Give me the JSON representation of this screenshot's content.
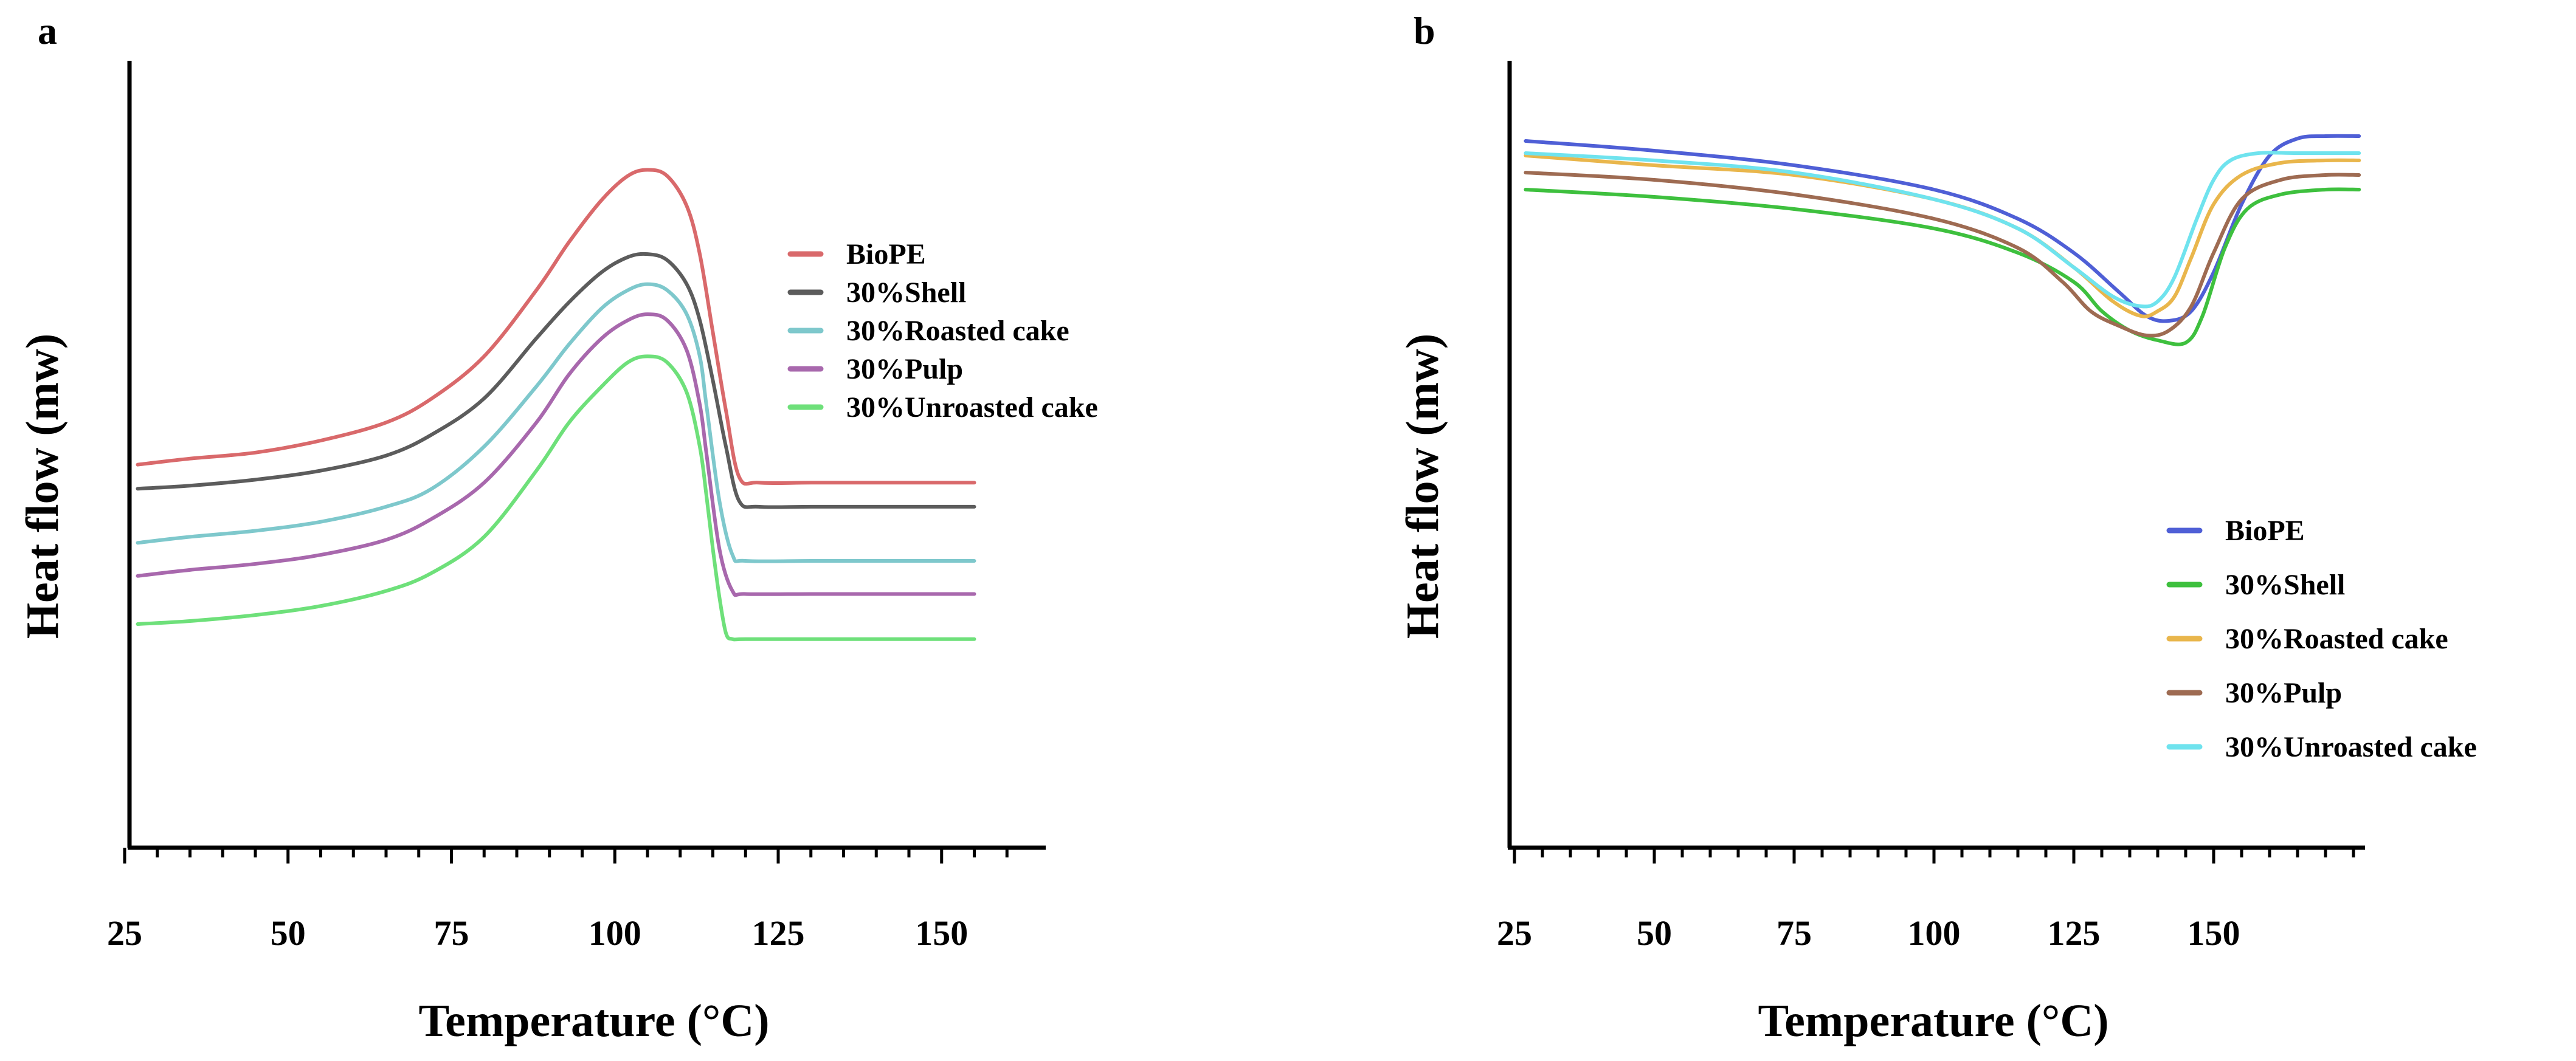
{
  "chart_data": [
    {
      "panel": "a",
      "type": "line",
      "title": "",
      "xlabel": "Temperature (°C)",
      "ylabel": "Heat flow (mw)",
      "xlim": [
        25,
        160
      ],
      "ylim": [
        0,
        100
      ],
      "x_ticks": [
        25,
        50,
        75,
        100,
        125,
        150
      ],
      "grid": false,
      "legend_position": "right",
      "series": [
        {
          "name": "BioPE",
          "color": "#d9696b",
          "x": [
            27,
            35,
            45,
            55,
            65,
            72,
            80,
            88,
            93,
            98,
            102,
            105,
            108,
            111,
            113,
            115,
            117,
            119,
            122,
            130,
            140,
            155
          ],
          "y": [
            46,
            47,
            48,
            50,
            53,
            57,
            64,
            75,
            83,
            90,
            94,
            95,
            94,
            89,
            81,
            68,
            55,
            44,
            43,
            43,
            43,
            43
          ]
        },
        {
          "name": "30%Shell",
          "color": "#5c5c5c",
          "x": [
            27,
            35,
            45,
            55,
            65,
            72,
            80,
            88,
            93,
            98,
            102,
            105,
            108,
            111,
            113,
            115,
            117,
            119,
            122,
            130,
            140,
            155
          ],
          "y": [
            42,
            42.5,
            43.5,
            45,
            47.5,
            51,
            57,
            67,
            73,
            78,
            80.5,
            81,
            80,
            76,
            70,
            60,
            49,
            40,
            39,
            39,
            39,
            39
          ]
        },
        {
          "name": "30%Roasted cake",
          "color": "#7ec8cc",
          "x": [
            27,
            35,
            45,
            55,
            65,
            72,
            80,
            88,
            93,
            98,
            102,
            105,
            108,
            111,
            113,
            114,
            116,
            118,
            120,
            130,
            140,
            155
          ],
          "y": [
            33,
            34,
            35,
            36.5,
            39,
            42,
            49,
            59,
            66,
            72,
            75,
            76,
            75,
            71,
            64,
            56,
            40,
            31,
            30,
            30,
            30,
            30
          ]
        },
        {
          "name": "30%Pulp",
          "color": "#a868ad",
          "x": [
            27,
            35,
            45,
            55,
            65,
            72,
            80,
            88,
            93,
            98,
            102,
            105,
            108,
            111,
            113,
            114,
            116,
            118,
            120,
            130,
            140,
            155
          ],
          "y": [
            27.5,
            28.5,
            29.5,
            31,
            33.5,
            37,
            43,
            53,
            61,
            67,
            70,
            71,
            70,
            65,
            56,
            48,
            32,
            25,
            24.5,
            24.5,
            24.5,
            24.5
          ]
        },
        {
          "name": "30%Unroasted cake",
          "color": "#6ee07a",
          "x": [
            27,
            35,
            45,
            55,
            65,
            72,
            80,
            88,
            93,
            98,
            102,
            105,
            108,
            111,
            113,
            114,
            115,
            116,
            117,
            118,
            120,
            130,
            140,
            155
          ],
          "y": [
            19.5,
            20,
            21,
            22.5,
            25,
            28,
            34,
            45,
            53,
            59,
            63,
            64,
            63,
            58,
            49,
            41,
            32,
            24,
            18,
            17,
            17,
            17,
            17,
            17
          ]
        }
      ]
    },
    {
      "panel": "b",
      "type": "line",
      "title": "",
      "xlabel": "Temperature (°C)",
      "ylabel": "Heat flow (mw)",
      "xlim": [
        25,
        180
      ],
      "ylim": [
        0,
        100
      ],
      "x_ticks": [
        25,
        50,
        75,
        100,
        125,
        150
      ],
      "grid": false,
      "legend_position": "bottom-right",
      "series": [
        {
          "name": "BioPE",
          "color": "#4f5fd6",
          "x": [
            27,
            50,
            75,
            100,
            115,
            125,
            133,
            138,
            142,
            146,
            150,
            155,
            160,
            165,
            170,
            176
          ],
          "y": [
            96,
            94,
            91,
            86,
            80,
            73,
            65,
            60,
            59,
            61,
            69,
            83,
            93,
            96.5,
            97,
            97
          ]
        },
        {
          "name": "30%Shell",
          "color": "#3ec03e",
          "x": [
            27,
            50,
            75,
            100,
            115,
            125,
            130,
            135,
            140,
            145,
            148,
            152,
            156,
            162,
            170,
            176
          ],
          "y": [
            86,
            84.5,
            82,
            78,
            73,
            67,
            61,
            57,
            55,
            54.5,
            60,
            74,
            82,
            85,
            86,
            86
          ]
        },
        {
          "name": "30%Roasted cake",
          "color": "#e9b64c",
          "x": [
            27,
            50,
            75,
            100,
            115,
            125,
            132,
            137,
            140,
            143,
            146,
            150,
            155,
            162,
            170,
            176
          ],
          "y": [
            93,
            91,
            89,
            84,
            78,
            70,
            63,
            60,
            61,
            64,
            72,
            83,
            89,
            91.5,
            92,
            92
          ]
        },
        {
          "name": "30%Pulp",
          "color": "#9e6b52",
          "x": [
            27,
            50,
            75,
            100,
            115,
            123,
            128,
            133,
            138,
            142,
            146,
            150,
            155,
            162,
            170,
            176
          ],
          "y": [
            89.5,
            88,
            85,
            80,
            74,
            67,
            61,
            58,
            56,
            57,
            62,
            73,
            84,
            88,
            89,
            89
          ]
        },
        {
          "name": "30%Unroasted cake",
          "color": "#6fe3ee",
          "x": [
            27,
            50,
            75,
            100,
            115,
            125,
            132,
            137,
            140,
            143,
            147,
            150,
            153,
            158,
            165,
            176
          ],
          "y": [
            93.5,
            92,
            89.5,
            84,
            78,
            70,
            64,
            62,
            63,
            68,
            80,
            88,
            92,
            93.5,
            93.5,
            93.5
          ]
        }
      ]
    }
  ],
  "labels": {
    "panel_a": "a",
    "panel_b": "b"
  }
}
